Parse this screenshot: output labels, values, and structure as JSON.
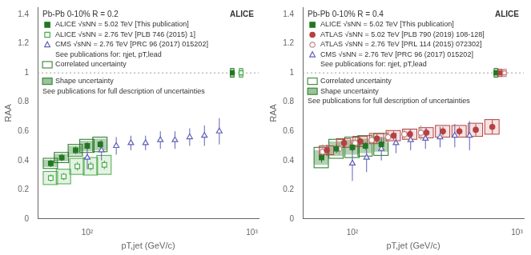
{
  "chart_data": [
    {
      "type": "scatter",
      "title": "Pb-Pb 0-10% R = 0.2",
      "subtitle": "ALICE",
      "xlabel": "pT,jet (GeV/c)",
      "ylabel": "RAA",
      "log": "x",
      "xlim": [
        50,
        1100
      ],
      "xticks": [
        {
          "value": 100,
          "label": "10²"
        },
        {
          "value": 1000,
          "label": "10³"
        }
      ],
      "ylim": [
        0,
        1.45
      ],
      "yticks": [
        0,
        0.2,
        0.4,
        0.6,
        0.8,
        1,
        1.2,
        1.4
      ],
      "grid": false,
      "legend": "upper left",
      "hline": 1,
      "annotations": [
        "See publications for: ηjet, pT,lead"
      ],
      "uncertainty_legend": {
        "entries": [
          {
            "text": "Correlated uncertainty",
            "box": "correlated"
          },
          {
            "text": "Shape uncertainty",
            "box": "shape"
          }
        ],
        "note": "See publications for full description of uncertainties"
      },
      "series": [
        {
          "name": "ALICE √sNN = 5.02 TeV [This publication]",
          "color": "#217821",
          "marker": "square",
          "x": [
            60,
            70,
            85,
            100,
            120
          ],
          "values": [
            0.38,
            0.42,
            0.47,
            0.5,
            0.51
          ],
          "errors": [
            0.025,
            0.025,
            0.025,
            0.025,
            0.025
          ],
          "correlated_box_height": [
            0.07,
            0.07,
            0.08,
            0.09,
            0.1
          ],
          "shape_box_height": [
            0.05,
            0.05,
            0.06,
            0.07,
            0.08
          ],
          "normalization": {
            "x": 760,
            "y": 1,
            "height": 0.06
          }
        },
        {
          "name": "ALICE √sNN = 2.76 TeV [PLB 746 (2015) 1]",
          "color": "#4aaa4a",
          "marker": "square_open",
          "x": [
            60,
            72,
            87,
            105,
            127
          ],
          "values": [
            0.28,
            0.29,
            0.36,
            0.36,
            0.37
          ],
          "errors": [
            0.025,
            0.025,
            0.03,
            0.03,
            0.03
          ],
          "correlated_box_height": [
            0.09,
            0.1,
            0.11,
            0.12,
            0.13
          ],
          "normalization": {
            "x": 860,
            "y": 1,
            "height": 0.06
          }
        },
        {
          "name": "CMS √sNN = 2.76 TeV [PRC 96 (2017) 015202]",
          "color": "#6060b8",
          "marker": "triangle_open",
          "x": [
            100,
            122,
            150,
            184,
            226,
            278,
            341,
            419,
            515,
            634
          ],
          "values": [
            0.42,
            0.47,
            0.5,
            0.52,
            0.52,
            0.54,
            0.54,
            0.56,
            0.57,
            0.6
          ],
          "error_low": [
            0.08,
            0.07,
            0.06,
            0.05,
            0.05,
            0.06,
            0.06,
            0.06,
            0.07,
            0.09
          ],
          "error_high": [
            0.08,
            0.07,
            0.06,
            0.05,
            0.05,
            0.06,
            0.06,
            0.06,
            0.07,
            0.09
          ]
        }
      ]
    },
    {
      "type": "scatter",
      "title": "Pb-Pb 0-10% R = 0.4",
      "subtitle": "ALICE",
      "xlabel": "pT,jet (GeV/c)",
      "ylabel": "RAA",
      "log": "x",
      "xlim": [
        50,
        1100
      ],
      "xticks": [
        {
          "value": 100,
          "label": "10²"
        },
        {
          "value": 1000,
          "label": "10³"
        }
      ],
      "ylim": [
        0,
        1.45
      ],
      "yticks": [
        0,
        0.2,
        0.4,
        0.6,
        0.8,
        1,
        1.2,
        1.4
      ],
      "grid": false,
      "legend": "upper left",
      "hline": 1,
      "annotations": [
        "See publications for: ηjet, pT,lead"
      ],
      "uncertainty_legend": {
        "entries": [
          {
            "text": "Correlated uncertainty",
            "box": "correlated"
          },
          {
            "text": "Shape uncertainty",
            "box": "shape"
          }
        ],
        "note": "See publications for full description of uncertainties"
      },
      "series": [
        {
          "name": "ALICE √sNN = 5.02 TeV [This publication]",
          "color": "#217821",
          "marker": "square",
          "x": [
            65,
            80,
            100,
            120,
            150
          ],
          "values": [
            0.42,
            0.48,
            0.49,
            0.5,
            0.51
          ],
          "errors": [
            0.035,
            0.03,
            0.028,
            0.028,
            0.028
          ],
          "correlated_box_height": [
            0.14,
            0.13,
            0.14,
            0.14,
            0.15
          ],
          "shape_box_height": [
            0.1,
            0.1,
            0.1,
            0.1,
            0.1
          ],
          "normalization": {
            "x": 745,
            "y": 1,
            "height": 0.06
          }
        },
        {
          "name": "ATLAS √sNN = 5.02 TeV [PLB 790 (2019) 108-128]",
          "color": "#b84040",
          "marker": "circle",
          "x": [
            70,
            89,
            112,
            141,
            178,
            224,
            282,
            355,
            447,
            562,
            708
          ],
          "values": [
            0.47,
            0.52,
            0.53,
            0.55,
            0.57,
            0.58,
            0.59,
            0.6,
            0.6,
            0.61,
            0.63
          ],
          "errors": [
            0.04,
            0.03,
            0.03,
            0.03,
            0.03,
            0.03,
            0.03,
            0.03,
            0.03,
            0.04,
            0.05
          ],
          "correlated_box_height": [
            0.06,
            0.06,
            0.07,
            0.07,
            0.07,
            0.07,
            0.07,
            0.08,
            0.08,
            0.09,
            0.1
          ],
          "normalization": {
            "x": 790,
            "y": 1,
            "height": 0.05
          }
        },
        {
          "name": "ATLAS √sNN = 2.76 TeV [PRL 114 (2015) 072302]",
          "color": "#c08888",
          "marker": "circle_open",
          "x": [
            66,
            83,
            104,
            131,
            165,
            207,
            261
          ],
          "values": [
            0.46,
            0.48,
            0.52,
            0.54,
            0.56,
            0.58,
            0.59
          ],
          "errors": [
            0.05,
            0.04,
            0.04,
            0.04,
            0.04,
            0.04,
            0.05
          ],
          "normalization": {
            "x": 840,
            "y": 1,
            "height": 0.05
          }
        },
        {
          "name": "CMS √sNN = 2.76 TeV [PRC 96 (2017) 015202]",
          "color": "#6060b8",
          "marker": "triangle_open",
          "x": [
            100,
            122,
            150,
            184,
            226,
            278,
            341,
            419,
            515
          ],
          "values": [
            0.38,
            0.42,
            0.48,
            0.52,
            0.54,
            0.55,
            0.56,
            0.57,
            0.57
          ],
          "error_low": [
            0.12,
            0.1,
            0.08,
            0.07,
            0.07,
            0.07,
            0.07,
            0.08,
            0.1
          ],
          "error_high": [
            0.12,
            0.1,
            0.08,
            0.07,
            0.07,
            0.07,
            0.07,
            0.08,
            0.1
          ]
        }
      ]
    }
  ]
}
